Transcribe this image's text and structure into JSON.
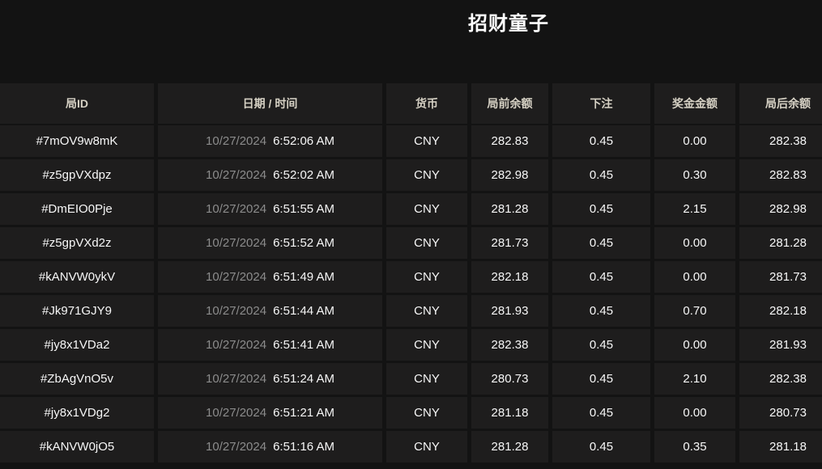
{
  "title": "招财童子",
  "colors": {
    "page_background": "#131313",
    "cell_background": "#1e1d1d",
    "header_text": "#d6d1c4",
    "body_text": "#f7f7f7",
    "date_text": "#8c8c8c"
  },
  "table": {
    "headers": [
      "局ID",
      "日期 / 时间",
      "货币",
      "局前余额",
      "下注",
      "奖金金额",
      "局后余额"
    ],
    "rows": [
      {
        "id": "#7mOV9w8mK",
        "date": "10/27/2024",
        "time": "6:52:06 AM",
        "currency": "CNY",
        "balance_before": "282.83",
        "bet": "0.45",
        "prize": "0.00",
        "balance_after": "282.38"
      },
      {
        "id": "#z5gpVXdpz",
        "date": "10/27/2024",
        "time": "6:52:02 AM",
        "currency": "CNY",
        "balance_before": "282.98",
        "bet": "0.45",
        "prize": "0.30",
        "balance_after": "282.83"
      },
      {
        "id": "#DmEIO0Pje",
        "date": "10/27/2024",
        "time": "6:51:55 AM",
        "currency": "CNY",
        "balance_before": "281.28",
        "bet": "0.45",
        "prize": "2.15",
        "balance_after": "282.98"
      },
      {
        "id": "#z5gpVXd2z",
        "date": "10/27/2024",
        "time": "6:51:52 AM",
        "currency": "CNY",
        "balance_before": "281.73",
        "bet": "0.45",
        "prize": "0.00",
        "balance_after": "281.28"
      },
      {
        "id": "#kANVW0ykV",
        "date": "10/27/2024",
        "time": "6:51:49 AM",
        "currency": "CNY",
        "balance_before": "282.18",
        "bet": "0.45",
        "prize": "0.00",
        "balance_after": "281.73"
      },
      {
        "id": "#Jk971GJY9",
        "date": "10/27/2024",
        "time": "6:51:44 AM",
        "currency": "CNY",
        "balance_before": "281.93",
        "bet": "0.45",
        "prize": "0.70",
        "balance_after": "282.18"
      },
      {
        "id": "#jy8x1VDa2",
        "date": "10/27/2024",
        "time": "6:51:41 AM",
        "currency": "CNY",
        "balance_before": "282.38",
        "bet": "0.45",
        "prize": "0.00",
        "balance_after": "281.93"
      },
      {
        "id": "#ZbAgVnO5v",
        "date": "10/27/2024",
        "time": "6:51:24 AM",
        "currency": "CNY",
        "balance_before": "280.73",
        "bet": "0.45",
        "prize": "2.10",
        "balance_after": "282.38"
      },
      {
        "id": "#jy8x1VDg2",
        "date": "10/27/2024",
        "time": "6:51:21 AM",
        "currency": "CNY",
        "balance_before": "281.18",
        "bet": "0.45",
        "prize": "0.00",
        "balance_after": "280.73"
      },
      {
        "id": "#kANVW0jO5",
        "date": "10/27/2024",
        "time": "6:51:16 AM",
        "currency": "CNY",
        "balance_before": "281.28",
        "bet": "0.45",
        "prize": "0.35",
        "balance_after": "281.18"
      }
    ]
  }
}
